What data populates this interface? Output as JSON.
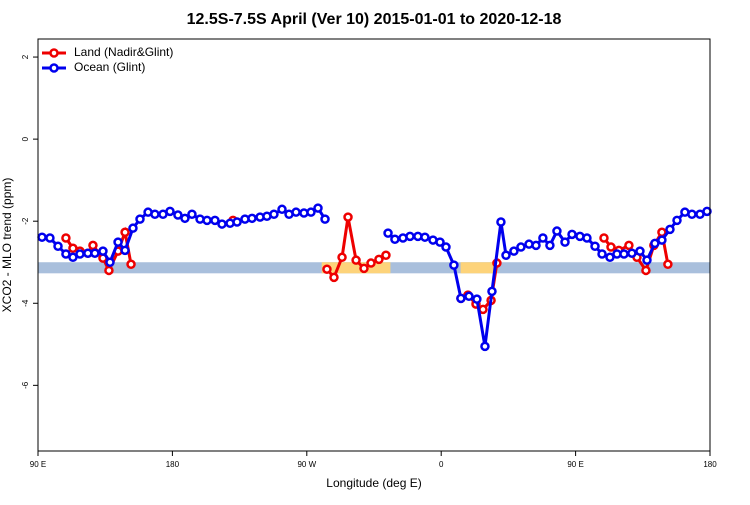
{
  "chart_data": {
    "type": "line",
    "title": "12.5S-7.5S April (Ver 10)   2015-01-01 to 2020-12-18",
    "x_label": "Longitude (deg E)",
    "y_label": "XCO2 - MLO trend (ppm)",
    "xlim": [
      90,
      540
    ],
    "ylim": [
      -7.6,
      2.44
    ],
    "xticks": [
      {
        "value": 90,
        "label": "90 E"
      },
      180,
      {
        "value": 270,
        "label": "90 W"
      },
      {
        "value": 360,
        "label": "0"
      },
      {
        "value": 450,
        "label": "90 E"
      },
      {
        "value": 540,
        "label": "180"
      }
    ],
    "yticks": [
      -6,
      -4,
      -2,
      0,
      2
    ],
    "legend": "top-left",
    "band": {
      "ylim": [
        -3.27,
        -3.0
      ],
      "color": "#a9bfdc"
    },
    "highlights": {
      "color": "#fdd37a",
      "ranges": [
        [
          280,
          326
        ],
        [
          373,
          396
        ]
      ]
    },
    "series": [
      {
        "name": "Land (Nadir&Glint)",
        "color": "#ee0000",
        "x": [
          108.7,
          113.4,
          118.1,
          123.4,
          126.8,
          133.5,
          137.5,
          143.6,
          148.3,
          152.3,
          200,
          220.6,
          250,
          283.5,
          288.2,
          293.6,
          297.6,
          303.0,
          308.3,
          313.0,
          318.3,
          323.0,
          350,
          373.2,
          377.9,
          383.3,
          388.0,
          393.4,
          397.3,
          430,
          469.0,
          473.7,
          479.0,
          485.7,
          491.1,
          497.1,
          502.4,
          507.8,
          511.8
        ],
        "values": [
          -2.41,
          -2.66,
          -2.73,
          -2.78,
          -2.59,
          -2.9,
          -3.2,
          -2.73,
          -2.27,
          -3.05,
          null,
          -1.98,
          null,
          -3.17,
          -3.37,
          -2.88,
          -1.9,
          -2.95,
          -3.15,
          -3.02,
          -2.93,
          -2.83,
          null,
          -3.88,
          -3.8,
          -4.02,
          -4.15,
          -3.93,
          -3.02,
          null,
          -2.41,
          -2.63,
          -2.71,
          -2.59,
          -2.88,
          -3.2,
          -2.59,
          -2.27,
          -3.05
        ]
      },
      {
        "name": "Ocean (Glint)",
        "color": "#0000ee",
        "x": [
          92.7,
          98.0,
          103.4,
          108.7,
          113.4,
          118.1,
          123.4,
          128.1,
          133.5,
          138.2,
          143.6,
          148.3,
          153.6,
          158.3,
          163.7,
          168.3,
          173.7,
          178.4,
          183.7,
          188.4,
          193.1,
          198.5,
          203.2,
          208.5,
          213.2,
          218.6,
          223.3,
          228.6,
          233.3,
          238.7,
          243.3,
          248.0,
          253.4,
          258.1,
          262.8,
          268.1,
          272.8,
          277.5,
          282.2,
          300,
          324.4,
          329.0,
          334.4,
          339.1,
          344.4,
          349.1,
          354.5,
          359.2,
          363.2,
          368.5,
          373.2,
          378.6,
          383.9,
          389.3,
          394.0,
          400.0,
          403.4,
          408.7,
          413.4,
          418.8,
          423.5,
          428.1,
          432.8,
          437.5,
          442.9,
          447.6,
          452.9,
          457.6,
          463.0,
          467.7,
          473.0,
          477.7,
          482.4,
          487.7,
          493.1,
          497.8,
          503.1,
          507.8,
          513.2,
          517.9,
          523.2,
          527.9,
          533.3,
          538.0
        ],
        "values": [
          -2.39,
          -2.41,
          -2.61,
          -2.8,
          -2.88,
          -2.8,
          -2.78,
          -2.78,
          -2.73,
          -3.0,
          -2.51,
          -2.71,
          -2.17,
          -1.95,
          -1.78,
          -1.83,
          -1.83,
          -1.76,
          -1.85,
          -1.93,
          -1.83,
          -1.95,
          -1.98,
          -1.98,
          -2.07,
          -2.05,
          -2.02,
          -1.95,
          -1.93,
          -1.9,
          -1.88,
          -1.83,
          -1.71,
          -1.83,
          -1.78,
          -1.8,
          -1.78,
          -1.68,
          -1.95,
          null,
          -2.29,
          -2.44,
          -2.41,
          -2.37,
          -2.37,
          -2.39,
          -2.46,
          -2.51,
          -2.63,
          -3.07,
          -3.88,
          -3.83,
          -3.9,
          -5.05,
          -3.71,
          -2.02,
          -2.83,
          -2.73,
          -2.63,
          -2.56,
          -2.59,
          -2.41,
          -2.59,
          -2.24,
          -2.51,
          -2.32,
          -2.37,
          -2.41,
          -2.61,
          -2.8,
          -2.88,
          -2.8,
          -2.8,
          -2.78,
          -2.73,
          -2.95,
          -2.54,
          -2.46,
          -2.2,
          -1.98,
          -1.78,
          -1.83,
          -1.83,
          -1.76
        ]
      }
    ]
  }
}
